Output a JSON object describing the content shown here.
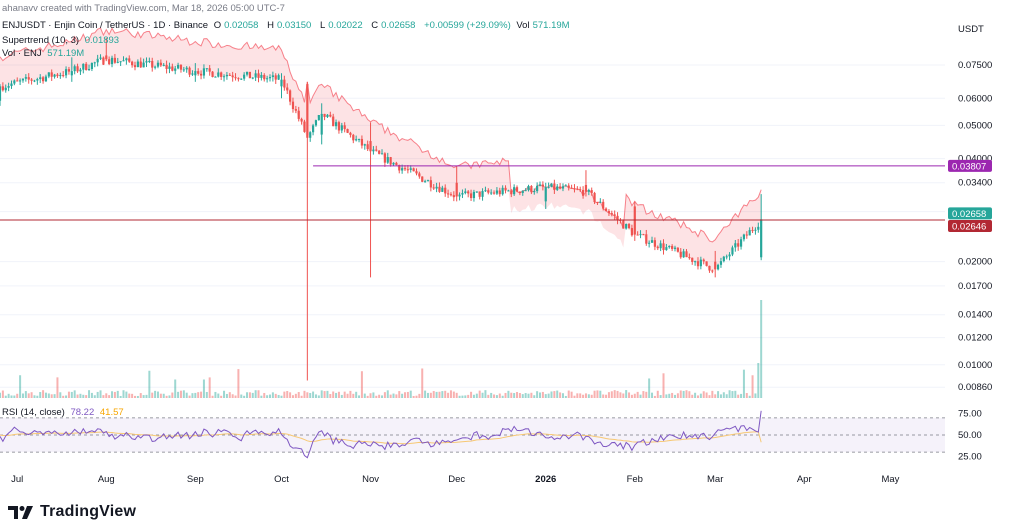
{
  "header": {
    "author_line": "ahanavv created with TradingView.com, Mar 18, 2026 05:00 UTC-7",
    "symbol": "ENJUSDT · Enjin Coin / TetherUS · 1D · Binance",
    "o_label": "O",
    "o": "0.02058",
    "h_label": "H",
    "h": "0.03150",
    "l_label": "L",
    "l": "0.02022",
    "c_label": "C",
    "c": "0.02658",
    "change": "+0.00599 (+29.09%)",
    "vol_label": "Vol",
    "vol": "571.19M",
    "supertrend_label": "Supertrend (10, 3)",
    "supertrend_value": "0.01893",
    "volume_label": "Vol · ENJ",
    "volume_value": "571.19M"
  },
  "axis": {
    "currency": "USDT",
    "price_ticks": [
      "0.07500",
      "0.06000",
      "0.05000",
      "0.04000",
      "0.03400",
      "0.02800",
      "0.02000",
      "0.01700",
      "0.01400",
      "0.01200",
      "0.01000",
      "0.00860"
    ],
    "rsi_ticks": [
      "75.00",
      "50.00",
      "25.00"
    ],
    "x_ticks": [
      "Jul",
      "Aug",
      "Sep",
      "Oct",
      "Nov",
      "Dec",
      "2026",
      "Feb",
      "Mar",
      "Apr",
      "May"
    ]
  },
  "badges": {
    "resistance": "0.03807",
    "close": "0.02658",
    "support": "0.02646"
  },
  "rsi": {
    "label": "RSI (14, close)",
    "value": "78.22",
    "ma": "41.57"
  },
  "brand": {
    "name": "TradingView"
  },
  "colors": {
    "up": "#26a69a",
    "down": "#ef5350",
    "supertrend_down": "#f23645",
    "supertrend_up": "#4caf50",
    "resistance": "#9c27b0",
    "support": "#b22833",
    "rsi": "#7e57c2",
    "rsi_ma": "#f7c873"
  },
  "chart_data": {
    "type": "candlestick",
    "scale": "log",
    "ylim": [
      0.008,
      0.105
    ],
    "x_range": [
      "2025-06-25",
      "2026-05-20"
    ],
    "ohlc_samples": [
      {
        "date": "2025-06-25",
        "open": 0.059,
        "high": 0.066,
        "low": 0.057,
        "close": 0.065
      },
      {
        "date": "2025-07-20",
        "open": 0.07,
        "high": 0.079,
        "low": 0.067,
        "close": 0.072
      },
      {
        "date": "2025-08-01",
        "open": 0.08,
        "high": 0.09,
        "low": 0.077,
        "close": 0.078
      },
      {
        "date": "2025-09-01",
        "open": 0.07,
        "high": 0.076,
        "low": 0.067,
        "close": 0.072
      },
      {
        "date": "2025-10-01",
        "open": 0.065,
        "high": 0.071,
        "low": 0.06,
        "close": 0.068
      },
      {
        "date": "2025-10-10",
        "open": 0.066,
        "high": 0.067,
        "low": 0.009,
        "close": 0.046
      },
      {
        "date": "2025-10-15",
        "open": 0.047,
        "high": 0.058,
        "low": 0.044,
        "close": 0.054
      },
      {
        "date": "2025-11-01",
        "open": 0.045,
        "high": 0.051,
        "low": 0.018,
        "close": 0.042
      },
      {
        "date": "2025-12-01",
        "open": 0.034,
        "high": 0.038,
        "low": 0.03,
        "close": 0.031
      },
      {
        "date": "2026-01-01",
        "open": 0.03,
        "high": 0.034,
        "low": 0.0285,
        "close": 0.033
      },
      {
        "date": "2026-01-15",
        "open": 0.0335,
        "high": 0.037,
        "low": 0.031,
        "close": 0.032
      },
      {
        "date": "2026-02-01",
        "open": 0.029,
        "high": 0.03,
        "low": 0.023,
        "close": 0.024
      },
      {
        "date": "2026-03-01",
        "open": 0.02,
        "high": 0.0215,
        "low": 0.018,
        "close": 0.019
      },
      {
        "date": "2026-03-17",
        "open": 0.0206,
        "high": 0.0315,
        "low": 0.0202,
        "close": 0.0266
      }
    ],
    "horizontal_lines": [
      {
        "name": "resistance",
        "value": 0.03807
      },
      {
        "name": "support",
        "value": 0.02646
      }
    ],
    "rsi": {
      "last": 78.22,
      "ma_last": 41.57,
      "ylim": [
        15,
        85
      ],
      "levels": [
        70,
        50,
        30
      ]
    }
  }
}
